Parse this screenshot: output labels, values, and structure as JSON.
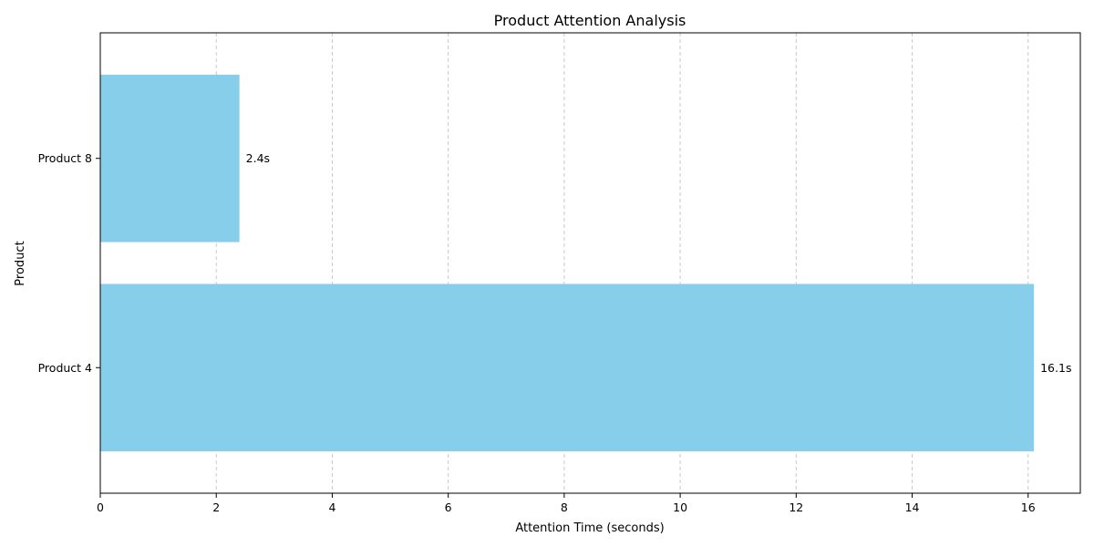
{
  "chart_data": {
    "type": "bar",
    "orientation": "horizontal",
    "title": "Product Attention Analysis",
    "xlabel": "Attention Time (seconds)",
    "ylabel": "Product",
    "categories": [
      "Product 4",
      "Product 8"
    ],
    "values": [
      16.1,
      2.4
    ],
    "data_labels": [
      "16.1s",
      "2.4s"
    ],
    "xlim": [
      0,
      16.9
    ],
    "xticks": [
      0,
      2,
      4,
      6,
      8,
      10,
      12,
      14,
      16
    ],
    "grid": {
      "x": true,
      "y": false,
      "style": "dashed"
    },
    "bar_color": "#87CEEB",
    "grid_color": "#c8c8c8"
  }
}
